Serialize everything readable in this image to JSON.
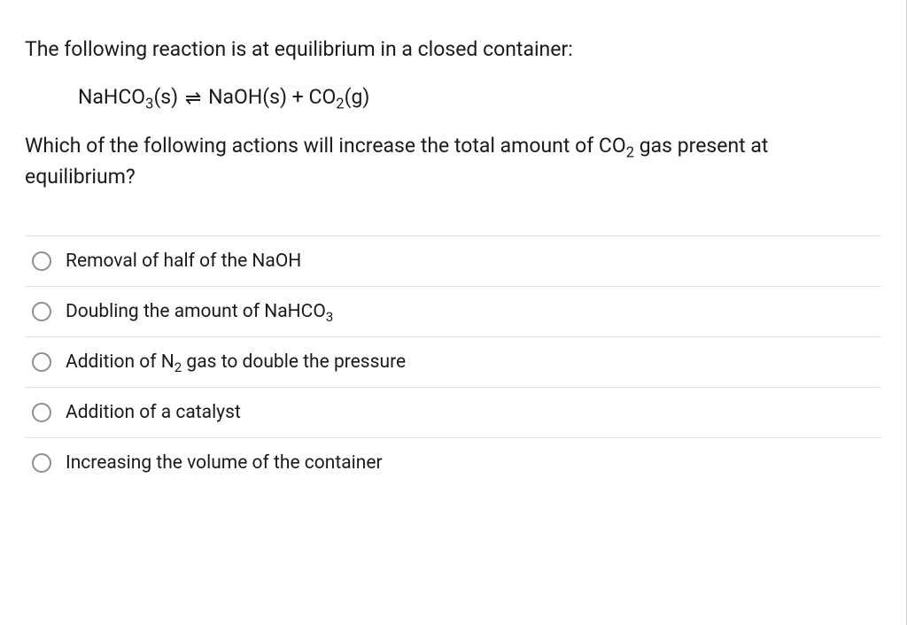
{
  "question": {
    "intro": "The following reaction is at equilibrium in a closed container:",
    "equation": {
      "lhs_compound": "NaHCO",
      "lhs_sub": "3",
      "lhs_state": "(s)",
      "rhs1_compound": "NaOH",
      "rhs1_state": "(s)",
      "plus": " + ",
      "rhs2_compound": "CO",
      "rhs2_sub": "2",
      "rhs2_state": "(g)"
    },
    "prompt_part1": "Which of the following actions will increase the total amount of CO",
    "prompt_sub": "2",
    "prompt_part2": " gas present at equilibrium?"
  },
  "options": [
    {
      "pre": "Removal of half of the NaOH",
      "sub": "",
      "post": ""
    },
    {
      "pre": "Doubling the amount of NaHCO",
      "sub": "3",
      "post": ""
    },
    {
      "pre": "Addition of N",
      "sub": "2",
      "post": " gas to double the pressure"
    },
    {
      "pre": "Addition of a catalyst",
      "sub": "",
      "post": ""
    },
    {
      "pre": "Increasing the volume of the container",
      "sub": "",
      "post": ""
    }
  ],
  "style": {
    "text_color": "#1a1a1a",
    "border_color": "#e2e2e2",
    "radio_border": "#8f8f8f",
    "background": "#ffffff",
    "body_fontsize": 23,
    "option_fontsize": 21
  }
}
